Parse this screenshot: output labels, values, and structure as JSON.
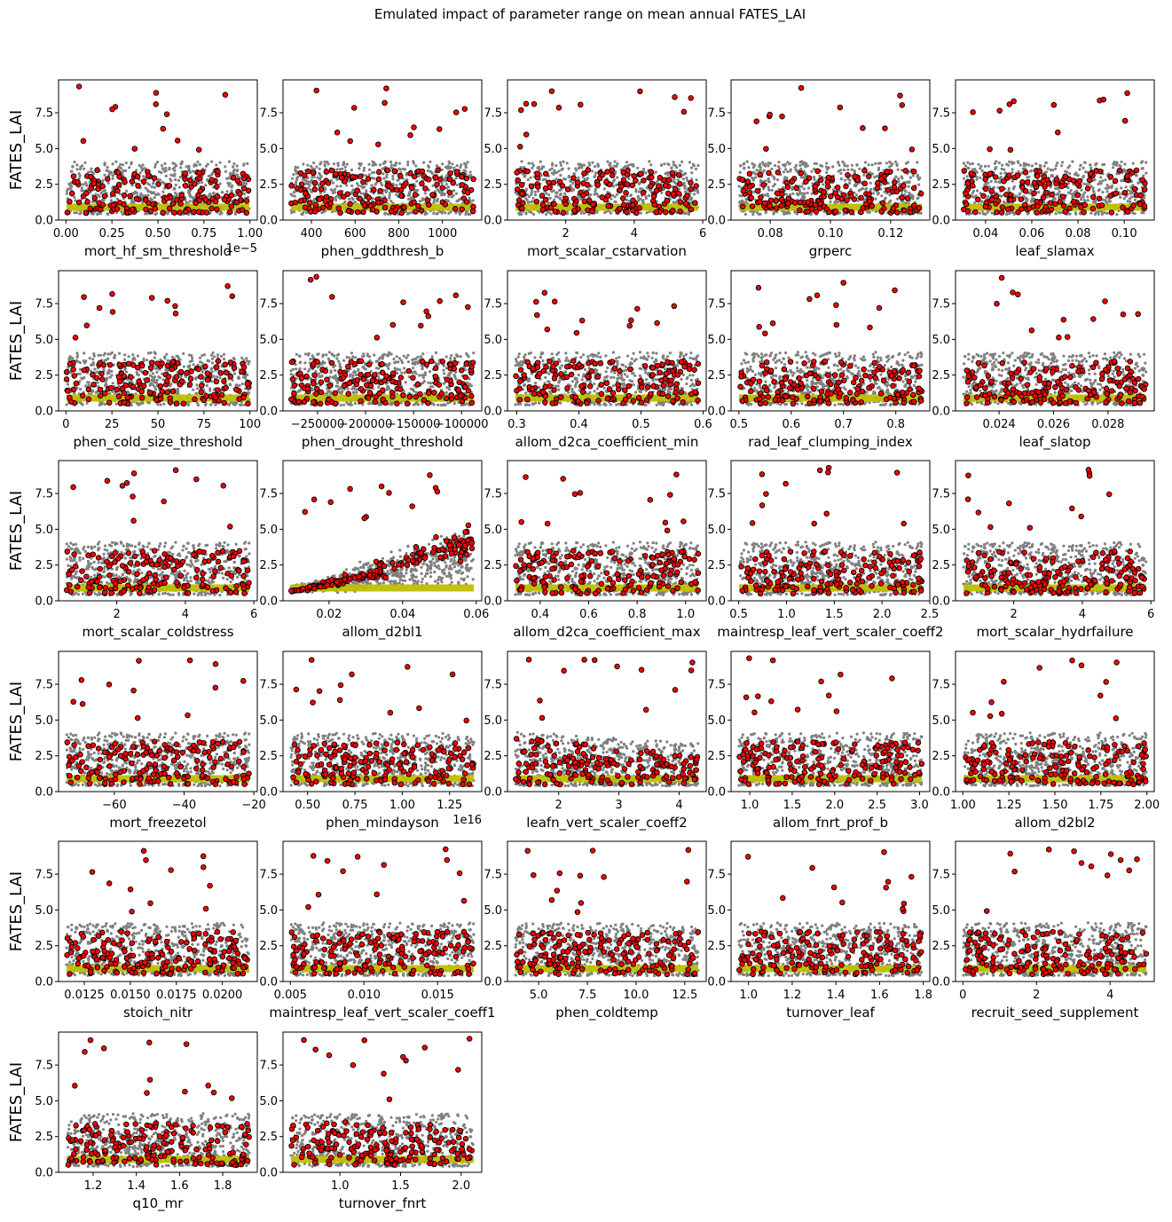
{
  "title": "Emulated impact of parameter range on mean annual FATES_LAI",
  "ylabel": "FATES_LAI",
  "colors": {
    "emulated": "#808080",
    "observed_fill": "#ff0000",
    "observed_edge": "#000000",
    "default_line": "#bfbf00"
  },
  "chart_data": {
    "type": "scatter",
    "ylim": [
      0,
      9.8
    ],
    "yticks": [
      "0.0",
      "2.5",
      "5.0",
      "7.5"
    ],
    "ytick_values": [
      0,
      2.5,
      5,
      7.5
    ],
    "default_value": 0.9,
    "panels": [
      {
        "xlabel": "mort_hf_sm_threshold",
        "xlim": [
          -0.04,
          1.04
        ],
        "xticks": [
          "0.00",
          "0.25",
          "0.50",
          "0.75",
          "1.00"
        ],
        "xtick_values": [
          0,
          0.25,
          0.5,
          0.75,
          1.0
        ],
        "offset": "1e−5",
        "pattern": "flat"
      },
      {
        "xlabel": "phen_gddthresh_b",
        "xlim": [
          270,
          1180
        ],
        "xticks": [
          "400",
          "600",
          "800",
          "1000"
        ],
        "xtick_values": [
          400,
          600,
          800,
          1000
        ],
        "pattern": "flat"
      },
      {
        "xlabel": "mort_scalar_cstarvation",
        "xlim": [
          0.3,
          6.1
        ],
        "xticks": [
          "2",
          "4",
          "6"
        ],
        "xtick_values": [
          2,
          4,
          6
        ],
        "pattern": "flat"
      },
      {
        "xlabel": "grperc",
        "xlim": [
          0.067,
          0.133
        ],
        "xticks": [
          "0.08",
          "0.10",
          "0.12"
        ],
        "xtick_values": [
          0.08,
          0.1,
          0.12
        ],
        "pattern": "flat"
      },
      {
        "xlabel": "leaf_slamax",
        "xlim": [
          0.027,
          0.113
        ],
        "xticks": [
          "0.04",
          "0.06",
          "0.08",
          "0.10"
        ],
        "xtick_values": [
          0.04,
          0.06,
          0.08,
          0.1
        ],
        "pattern": "flat"
      },
      {
        "xlabel": "phen_cold_size_threshold",
        "xlim": [
          -4,
          104
        ],
        "xticks": [
          "0",
          "25",
          "50",
          "75",
          "100"
        ],
        "xtick_values": [
          0,
          25,
          50,
          75,
          100
        ],
        "pattern": "flat"
      },
      {
        "xlabel": "phen_drought_threshold",
        "xlim": [
          -286000,
          -79000
        ],
        "xticks": [
          "−250000",
          "−200000",
          "−150000",
          "−100000"
        ],
        "xtick_values": [
          -250000,
          -200000,
          -150000,
          -100000
        ],
        "pattern": "flat"
      },
      {
        "xlabel": "allom_d2ca_coefficient_min",
        "xlim": [
          0.285,
          0.605
        ],
        "xticks": [
          "0.3",
          "0.4",
          "0.5",
          "0.6"
        ],
        "xtick_values": [
          0.3,
          0.4,
          0.5,
          0.6
        ],
        "pattern": "flat"
      },
      {
        "xlabel": "rad_leaf_clumping_index",
        "xlim": [
          0.485,
          0.865
        ],
        "xticks": [
          "0.5",
          "0.6",
          "0.7",
          "0.8"
        ],
        "xtick_values": [
          0.5,
          0.6,
          0.7,
          0.8
        ],
        "pattern": "flat"
      },
      {
        "xlabel": "leaf_slatop",
        "xlim": [
          0.0224,
          0.0297
        ],
        "xticks": [
          "0.024",
          "0.026",
          "0.028"
        ],
        "xtick_values": [
          0.024,
          0.026,
          0.028
        ],
        "pattern": "flat"
      },
      {
        "xlabel": "mort_scalar_coldstress",
        "xlim": [
          0.3,
          6.1
        ],
        "xticks": [
          "2",
          "4",
          "6"
        ],
        "xtick_values": [
          2,
          4,
          6
        ],
        "pattern": "flat"
      },
      {
        "xlabel": "allom_d2bl1",
        "xlim": [
          0.0075,
          0.0615
        ],
        "xticks": [
          "0.02",
          "0.04",
          "0.06"
        ],
        "xtick_values": [
          0.02,
          0.04,
          0.06
        ],
        "pattern": "increasing"
      },
      {
        "xlabel": "allom_d2ca_coefficient_max",
        "xlim": [
          0.265,
          1.085
        ],
        "xticks": [
          "0.4",
          "0.6",
          "0.8",
          "1.0"
        ],
        "xtick_values": [
          0.4,
          0.6,
          0.8,
          1.0
        ],
        "pattern": "flat"
      },
      {
        "xlabel": "maintresp_leaf_vert_scaler_coeff2",
        "xlim": [
          0.42,
          2.5
        ],
        "xticks": [
          "0.5",
          "1.0",
          "1.5",
          "2.0",
          "2.5"
        ],
        "xtick_values": [
          0.5,
          1.0,
          1.5,
          2.0,
          2.5
        ],
        "pattern": "flat"
      },
      {
        "xlabel": "mort_scalar_hydrfailure",
        "xlim": [
          0.3,
          6.1
        ],
        "xticks": [
          "2",
          "4",
          "6"
        ],
        "xtick_values": [
          2,
          4,
          6
        ],
        "pattern": "flat"
      },
      {
        "xlabel": "mort_freezetol",
        "xlim": [
          -76,
          -19
        ],
        "xticks": [
          "−60",
          "−40",
          "−20"
        ],
        "xtick_values": [
          -60,
          -40,
          -20
        ],
        "pattern": "flat"
      },
      {
        "xlabel": "phen_mindayson",
        "xlim": [
          0.37,
          1.42
        ],
        "xticks": [
          "0.50",
          "0.75",
          "1.00",
          "1.25"
        ],
        "xtick_values": [
          0.5,
          0.75,
          1.0,
          1.25
        ],
        "offset": "1e16",
        "pattern": "flat"
      },
      {
        "xlabel": "leafn_vert_scaler_coeff2",
        "xlim": [
          1.15,
          4.45
        ],
        "xticks": [
          "2",
          "3",
          "4"
        ],
        "xtick_values": [
          2,
          3,
          4
        ],
        "pattern": "decreasing"
      },
      {
        "xlabel": "allom_fnrt_prof_b",
        "xlim": [
          0.78,
          3.12
        ],
        "xticks": [
          "1.0",
          "1.5",
          "2.0",
          "2.5",
          "3.0"
        ],
        "xtick_values": [
          1.0,
          1.5,
          2.0,
          2.5,
          3.0
        ],
        "pattern": "flat"
      },
      {
        "xlabel": "allom_d2bl2",
        "xlim": [
          0.96,
          2.04
        ],
        "xticks": [
          "1.00",
          "1.25",
          "1.50",
          "1.75",
          "2.00"
        ],
        "xtick_values": [
          1.0,
          1.25,
          1.5,
          1.75,
          2.0
        ],
        "pattern": "flat"
      },
      {
        "xlabel": "stoich_nitr",
        "xlim": [
          0.0111,
          0.0219
        ],
        "xticks": [
          "0.0125",
          "0.0150",
          "0.0175",
          "0.0200"
        ],
        "xtick_values": [
          0.0125,
          0.015,
          0.0175,
          0.02
        ],
        "pattern": "flat"
      },
      {
        "xlabel": "maintresp_leaf_vert_scaler_coeff1",
        "xlim": [
          0.0045,
          0.018
        ],
        "xticks": [
          "0.005",
          "0.010",
          "0.015"
        ],
        "xtick_values": [
          0.005,
          0.01,
          0.015
        ],
        "pattern": "flat"
      },
      {
        "xlabel": "phen_coldtemp",
        "xlim": [
          3.4,
          13.6
        ],
        "xticks": [
          "5.0",
          "7.5",
          "10.0",
          "12.5"
        ],
        "xtick_values": [
          5.0,
          7.5,
          10.0,
          12.5
        ],
        "pattern": "flat"
      },
      {
        "xlabel": "turnover_leaf",
        "xlim": [
          0.92,
          1.83
        ],
        "xticks": [
          "1.0",
          "1.2",
          "1.4",
          "1.6",
          "1.8"
        ],
        "xtick_values": [
          1.0,
          1.2,
          1.4,
          1.6,
          1.8
        ],
        "pattern": "flat"
      },
      {
        "xlabel": "recruit_seed_supplement",
        "xlim": [
          -0.2,
          5.2
        ],
        "xticks": [
          "0",
          "2",
          "4"
        ],
        "xtick_values": [
          0,
          2,
          4
        ],
        "pattern": "flat"
      },
      {
        "xlabel": "q10_mr",
        "xlim": [
          1.04,
          1.96
        ],
        "xticks": [
          "1.2",
          "1.4",
          "1.6",
          "1.8"
        ],
        "xtick_values": [
          1.2,
          1.4,
          1.6,
          1.8
        ],
        "pattern": "flat"
      },
      {
        "xlabel": "turnover_fnrt",
        "xlim": [
          0.53,
          2.17
        ],
        "xticks": [
          "1.0",
          "1.5",
          "2.0"
        ],
        "xtick_values": [
          1.0,
          1.5,
          2.0
        ],
        "pattern": "flat"
      }
    ]
  }
}
